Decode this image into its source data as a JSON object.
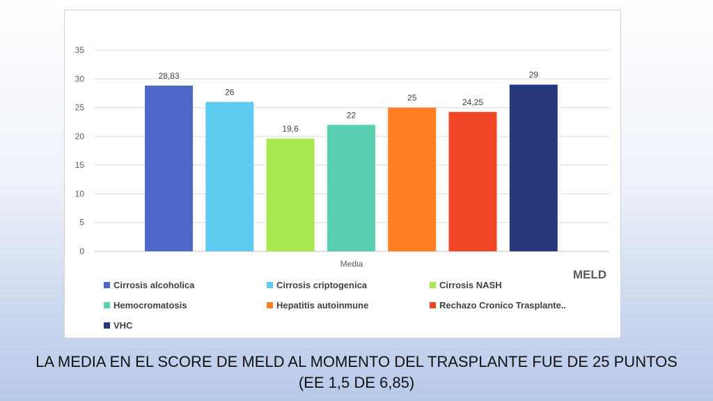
{
  "chart_data": {
    "type": "bar",
    "categories": [
      "Media"
    ],
    "series": [
      {
        "name": "Cirrosis alcoholica",
        "values": [
          28.83
        ],
        "label": "28,83",
        "color": "#4f67c8"
      },
      {
        "name": "Cirrosis criptogenica",
        "values": [
          26
        ],
        "label": "26",
        "color": "#5ecbf0"
      },
      {
        "name": "Cirrosis NASH",
        "values": [
          19.6
        ],
        "label": "19,6",
        "color": "#a6e84e"
      },
      {
        "name": "Hemocromatosis",
        "values": [
          22
        ],
        "label": "22",
        "color": "#5ad0b0"
      },
      {
        "name": "Hepatitis autoinmune",
        "values": [
          25
        ],
        "label": "25",
        "color": "#fd7f22"
      },
      {
        "name": "Rechazo Cronico Trasplante..",
        "values": [
          24.25
        ],
        "label": "24,25",
        "color": "#f04526"
      },
      {
        "name": "VHC",
        "values": [
          29
        ],
        "label": "29",
        "color": "#26387a"
      }
    ],
    "yticks": [
      0,
      5,
      10,
      15,
      20,
      25,
      30,
      35
    ],
    "ylim": [
      0,
      35
    ],
    "grid": true,
    "legend_title": "MELD",
    "legend_position": "bottom"
  },
  "caption": {
    "line1": "LA MEDIA EN EL SCORE DE MELD AL MOMENTO DEL TRASPLANTE FUE DE 25 PUNTOS",
    "line2": "(EE 1,5 DE 6,85)"
  }
}
